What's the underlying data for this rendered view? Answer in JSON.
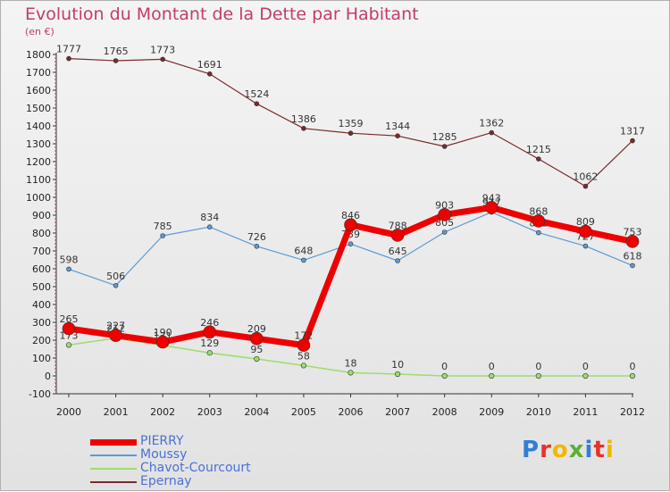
{
  "title": "Evolution du Montant de la Dette par Habitant",
  "subtitle": "(en €)",
  "logo": {
    "text": "Proxiti",
    "letter_colors": [
      "#2f7fd6",
      "#e6332a",
      "#f2b600",
      "#5cb030",
      "#2f7fd6",
      "#e6332a",
      "#f2b600"
    ]
  },
  "chart_data": {
    "type": "line",
    "x": [
      "2000",
      "2001",
      "2002",
      "2003",
      "2004",
      "2005",
      "2006",
      "2007",
      "2008",
      "2009",
      "2010",
      "2011",
      "2012"
    ],
    "ylim": [
      -100,
      1800
    ],
    "yticks": [
      "-100",
      "0",
      "100",
      "200",
      "300",
      "400",
      "500",
      "600",
      "700",
      "800",
      "900",
      "1000",
      "1100",
      "1200",
      "1300",
      "1400",
      "1500",
      "1600",
      "1700",
      "1800"
    ],
    "grid": false,
    "legend_position": "bottom-left",
    "series": [
      {
        "name": "Epernay",
        "color": "#7a2a2a",
        "width": 1.2,
        "marker": 2.5,
        "values": [
          1777,
          1765,
          1773,
          1691,
          1524,
          1386,
          1359,
          1344,
          1285,
          1362,
          1215,
          1062,
          1317
        ],
        "labels": [
          "1777",
          "1765",
          "1773",
          "1691",
          "1524",
          "1386",
          "1359",
          "1344",
          "1285",
          "1362",
          "1215",
          "1062",
          "1317"
        ]
      },
      {
        "name": "Moussy",
        "color": "#5b9bd5",
        "width": 1.2,
        "marker": 2.5,
        "values": [
          598,
          506,
          785,
          834,
          726,
          648,
          739,
          645,
          805,
          917,
          802,
          727,
          618
        ],
        "labels": [
          "598",
          "506",
          "785",
          "834",
          "726",
          "648",
          "739",
          "645",
          "805",
          "917",
          "802",
          "727",
          "618"
        ]
      },
      {
        "name": "Chavot-Courcourt",
        "color": "#9ddc6e",
        "width": 1.5,
        "marker": 2.8,
        "values": [
          173,
          212,
          171,
          129,
          95,
          58,
          18,
          10,
          0,
          0,
          0,
          0,
          0
        ],
        "labels": [
          "173",
          "212",
          "171",
          "129",
          "95",
          "58",
          "18",
          "10",
          "0",
          "0",
          "0",
          "0",
          "0"
        ]
      },
      {
        "name": "PIERRY",
        "color": "#ee0000",
        "width": 7,
        "marker": 7,
        "values": [
          265,
          227,
          190,
          246,
          209,
          172,
          846,
          788,
          903,
          943,
          868,
          809,
          753
        ],
        "labels": [
          "265",
          "227",
          "190",
          "246",
          "209",
          "172",
          "846",
          "788",
          "903",
          "943",
          "868",
          "809",
          "753"
        ]
      }
    ]
  },
  "legend": [
    {
      "name": "PIERRY",
      "color": "#ee0000",
      "thickness": 7
    },
    {
      "name": "Moussy",
      "color": "#5b9bd5",
      "thickness": 2
    },
    {
      "name": "Chavot-Courcourt",
      "color": "#9ddc6e",
      "thickness": 2
    },
    {
      "name": "Epernay",
      "color": "#7a2a2a",
      "thickness": 2
    }
  ]
}
